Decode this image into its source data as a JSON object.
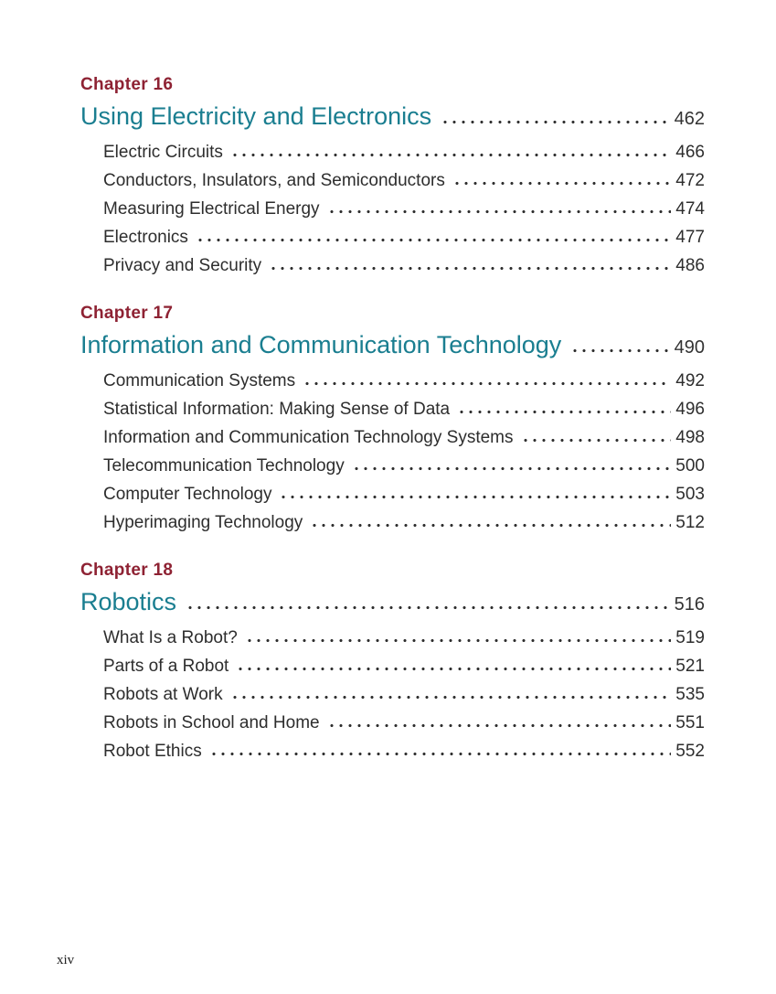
{
  "page": {
    "footer": "xiv"
  },
  "colors": {
    "chapter_label": "#8e2233",
    "chapter_title": "#1a7e90",
    "body_text": "#2d2d2d"
  },
  "chapters": [
    {
      "label": "Chapter 16",
      "title": "Using Electricity and Electronics",
      "page": "462",
      "sections": [
        {
          "title": "Electric Circuits",
          "page": "466"
        },
        {
          "title": "Conductors, Insulators, and Semiconductors",
          "page": "472"
        },
        {
          "title": "Measuring Electrical Energy",
          "page": "474"
        },
        {
          "title": "Electronics",
          "page": "477"
        },
        {
          "title": "Privacy and Security",
          "page": "486"
        }
      ]
    },
    {
      "label": "Chapter 17",
      "title": "Information and Communication Technology",
      "page": "490",
      "sections": [
        {
          "title": "Communication Systems",
          "page": "492"
        },
        {
          "title": "Statistical Information: Making Sense of Data",
          "page": "496"
        },
        {
          "title": "Information and Communication Technology Systems",
          "page": "498"
        },
        {
          "title": "Telecommunication Technology",
          "page": "500"
        },
        {
          "title": "Computer Technology",
          "page": "503"
        },
        {
          "title": "Hyperimaging Technology",
          "page": "512"
        }
      ]
    },
    {
      "label": "Chapter 18",
      "title": "Robotics",
      "page": "516",
      "sections": [
        {
          "title": "What Is a Robot?",
          "page": "519"
        },
        {
          "title": "Parts of a Robot",
          "page": "521"
        },
        {
          "title": "Robots at Work",
          "page": "535"
        },
        {
          "title": "Robots in School and Home",
          "page": "551"
        },
        {
          "title": "Robot Ethics",
          "page": "552"
        }
      ]
    }
  ]
}
